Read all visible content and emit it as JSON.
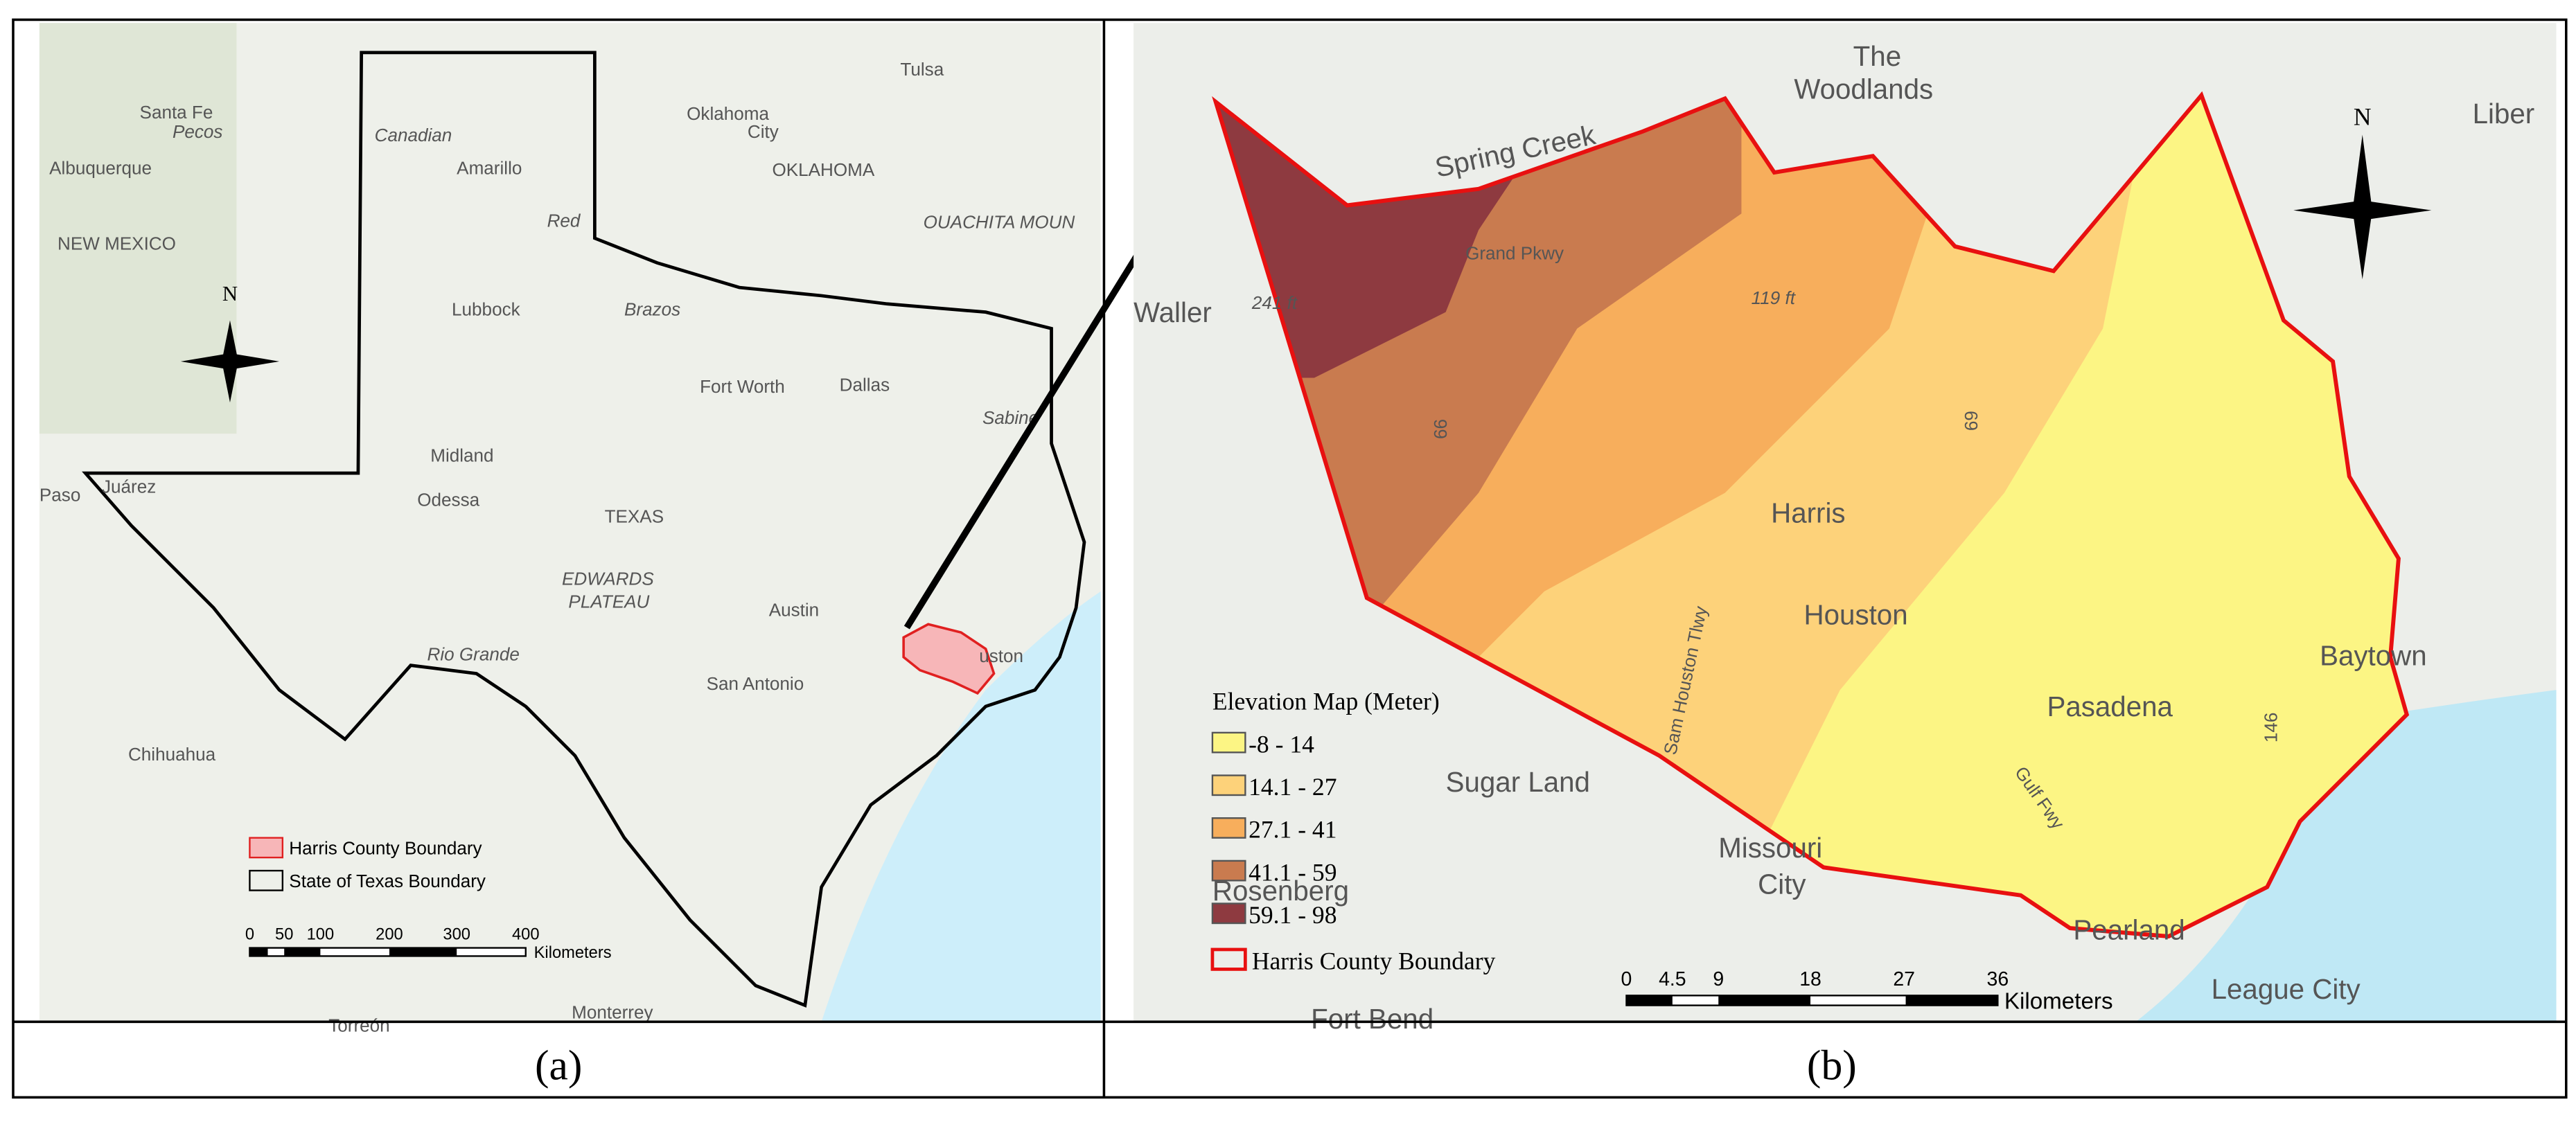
{
  "panel_a": {
    "caption": "(a)",
    "north": "N",
    "places": [
      "Santa Fe",
      "Tulsa",
      "Oklahoma",
      "City",
      "OKLAHOMA",
      "Albuquerque",
      "Pecos",
      "Canadian",
      "Amarillo",
      "Red",
      "NEW MEXICO",
      "OUACHITA MOUN",
      "Lubbock",
      "Brazos",
      "Fort Worth",
      "Dallas",
      "Midland",
      "Odessa",
      "Sabine",
      "Paso",
      "Juárez",
      "TEXAS",
      "EDWARDS",
      "PLATEAU",
      "Austin",
      "Rio Grande",
      "San Antonio",
      "uston",
      "Chihuahua",
      "Monterrey",
      "Torreón"
    ],
    "legend": [
      "Harris County Boundary",
      "State of Texas Boundary"
    ],
    "scale_bar": {
      "ticks": [
        "0",
        "50",
        "100",
        "200",
        "300",
        "400"
      ],
      "unit": "Kilometers"
    }
  },
  "panel_b": {
    "caption": "(b)",
    "north": "N",
    "places": [
      "The",
      "Woodlands",
      "Spring Creek",
      "Grand Pkwy",
      "Waller",
      "241 ft",
      "119 ft",
      "Harris",
      "Houston",
      "Sugar Land",
      "Sam Houston Tlwy",
      "Pasadena",
      "Baytown",
      "Missouri",
      "City",
      "Rosenberg",
      "Pearland",
      "League City",
      "Fort Bend",
      "Gulf Fwy",
      "Liber",
      "99",
      "69",
      "146"
    ],
    "legend": {
      "title": "Elevation Map (Meter)",
      "items": [
        "-8 - 14",
        "14.1 - 27",
        "27.1 - 41",
        "41.1 - 59",
        "59.1 - 98"
      ],
      "boundary": "Harris County Boundary"
    },
    "scale_bar": {
      "ticks": [
        "0",
        "4.5",
        "9",
        "18",
        "27",
        "36"
      ],
      "unit": "Kilometers"
    }
  }
}
